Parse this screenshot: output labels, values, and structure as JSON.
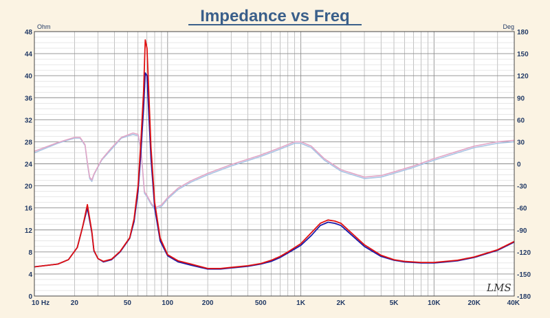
{
  "chart_data": {
    "type": "line",
    "title": "Impedance vs Freq",
    "left_unit": "Ohm",
    "right_unit": "Deg",
    "signature": "LMS",
    "x_scale": "log",
    "xlim": [
      10,
      40000
    ],
    "ylim_left": [
      0,
      48
    ],
    "ylim_right": [
      -180,
      180
    ],
    "grid": true,
    "x_ticks": [
      {
        "value": 10,
        "label": "10  Hz"
      },
      {
        "value": 20,
        "label": "20"
      },
      {
        "value": 50,
        "label": "50"
      },
      {
        "value": 100,
        "label": "100"
      },
      {
        "value": 200,
        "label": "200"
      },
      {
        "value": 500,
        "label": "500"
      },
      {
        "value": 1000,
        "label": "1K"
      },
      {
        "value": 2000,
        "label": "2K"
      },
      {
        "value": 5000,
        "label": "5K"
      },
      {
        "value": 10000,
        "label": "10K"
      },
      {
        "value": 20000,
        "label": "20K"
      },
      {
        "value": 40000,
        "label": "40K"
      }
    ],
    "y_left_ticks": [
      "0",
      "4",
      "8",
      "12",
      "16",
      "20",
      "24",
      "28",
      "32",
      "36",
      "40",
      "44",
      "48"
    ],
    "y_right_ticks": [
      "-180",
      "-150",
      "-120",
      "-90",
      "-60",
      "-30",
      "0",
      "30",
      "60",
      "90",
      "120",
      "150",
      "180"
    ],
    "colors": {
      "impedance_1": "#1a1aa8",
      "impedance_2": "#e01010",
      "phase_1": "#a9c4e4",
      "phase_2": "#e2a6c6",
      "grid": "#9a9a9a",
      "plot_bg": "#ffffff",
      "title": "#3a5f8a",
      "axis_text": "#223a66"
    },
    "series": [
      {
        "axis": "left",
        "color_key": "impedance_1",
        "points": [
          [
            10,
            5.3
          ],
          [
            15,
            5.8
          ],
          [
            18,
            6.6
          ],
          [
            21,
            8.8
          ],
          [
            23,
            12.5
          ],
          [
            25,
            16.0
          ],
          [
            27,
            11.5
          ],
          [
            28,
            8.2
          ],
          [
            30,
            6.8
          ],
          [
            33,
            6.2
          ],
          [
            38,
            6.6
          ],
          [
            44,
            8.0
          ],
          [
            52,
            10.5
          ],
          [
            56,
            13.5
          ],
          [
            60,
            19
          ],
          [
            63,
            26
          ],
          [
            66,
            34
          ],
          [
            68,
            40.5
          ],
          [
            70,
            40
          ],
          [
            72,
            34
          ],
          [
            75,
            25
          ],
          [
            80,
            16
          ],
          [
            88,
            10
          ],
          [
            100,
            7.3
          ],
          [
            120,
            6.2
          ],
          [
            150,
            5.6
          ],
          [
            200,
            4.9
          ],
          [
            250,
            4.9
          ],
          [
            300,
            5.1
          ],
          [
            400,
            5.4
          ],
          [
            500,
            5.8
          ],
          [
            600,
            6.3
          ],
          [
            700,
            7.0
          ],
          [
            800,
            7.8
          ],
          [
            1000,
            9.2
          ],
          [
            1200,
            11.0
          ],
          [
            1400,
            12.8
          ],
          [
            1600,
            13.4
          ],
          [
            1800,
            13.2
          ],
          [
            2000,
            12.8
          ],
          [
            3000,
            9.0
          ],
          [
            4000,
            7.2
          ],
          [
            5000,
            6.5
          ],
          [
            6000,
            6.2
          ],
          [
            8000,
            6.0
          ],
          [
            10000,
            6.0
          ],
          [
            15000,
            6.4
          ],
          [
            20000,
            7.0
          ],
          [
            30000,
            8.3
          ],
          [
            40000,
            9.8
          ]
        ]
      },
      {
        "axis": "left",
        "color_key": "impedance_2",
        "points": [
          [
            10,
            5.3
          ],
          [
            15,
            5.8
          ],
          [
            18,
            6.6
          ],
          [
            21,
            8.8
          ],
          [
            23,
            12.5
          ],
          [
            25,
            16.6
          ],
          [
            27,
            11.7
          ],
          [
            28,
            8.3
          ],
          [
            30,
            6.8
          ],
          [
            33,
            6.3
          ],
          [
            38,
            6.7
          ],
          [
            44,
            8.1
          ],
          [
            52,
            10.6
          ],
          [
            56,
            14
          ],
          [
            60,
            20
          ],
          [
            63,
            28
          ],
          [
            66,
            37
          ],
          [
            68,
            46.5
          ],
          [
            70,
            45
          ],
          [
            72,
            38
          ],
          [
            75,
            27
          ],
          [
            80,
            17
          ],
          [
            88,
            10.5
          ],
          [
            100,
            7.5
          ],
          [
            120,
            6.4
          ],
          [
            150,
            5.8
          ],
          [
            200,
            5.0
          ],
          [
            250,
            5.0
          ],
          [
            300,
            5.2
          ],
          [
            400,
            5.5
          ],
          [
            500,
            5.9
          ],
          [
            600,
            6.5
          ],
          [
            700,
            7.2
          ],
          [
            800,
            8.0
          ],
          [
            1000,
            9.5
          ],
          [
            1200,
            11.5
          ],
          [
            1400,
            13.2
          ],
          [
            1600,
            13.8
          ],
          [
            1800,
            13.6
          ],
          [
            2000,
            13.2
          ],
          [
            3000,
            9.3
          ],
          [
            4000,
            7.4
          ],
          [
            5000,
            6.6
          ],
          [
            6000,
            6.3
          ],
          [
            8000,
            6.1
          ],
          [
            10000,
            6.1
          ],
          [
            15000,
            6.5
          ],
          [
            20000,
            7.1
          ],
          [
            30000,
            8.4
          ],
          [
            40000,
            9.9
          ]
        ]
      },
      {
        "axis": "right",
        "color_key": "phase_1",
        "points": [
          [
            10,
            15
          ],
          [
            15,
            28
          ],
          [
            20,
            35
          ],
          [
            22,
            35
          ],
          [
            24,
            25
          ],
          [
            25,
            0
          ],
          [
            26,
            -20
          ],
          [
            27,
            -24
          ],
          [
            28,
            -15
          ],
          [
            32,
            5
          ],
          [
            38,
            20
          ],
          [
            45,
            35
          ],
          [
            55,
            40
          ],
          [
            60,
            38
          ],
          [
            63,
            20
          ],
          [
            65,
            -10
          ],
          [
            67,
            -40
          ],
          [
            70,
            -45
          ],
          [
            75,
            -55
          ],
          [
            80,
            -62
          ],
          [
            90,
            -58
          ],
          [
            100,
            -48
          ],
          [
            120,
            -35
          ],
          [
            150,
            -25
          ],
          [
            200,
            -15
          ],
          [
            300,
            -3
          ],
          [
            500,
            10
          ],
          [
            700,
            20
          ],
          [
            900,
            28
          ],
          [
            1000,
            28
          ],
          [
            1200,
            22
          ],
          [
            1500,
            5
          ],
          [
            2000,
            -10
          ],
          [
            3000,
            -20
          ],
          [
            4000,
            -18
          ],
          [
            5000,
            -13
          ],
          [
            7000,
            -5
          ],
          [
            10000,
            5
          ],
          [
            15000,
            15
          ],
          [
            20000,
            22
          ],
          [
            30000,
            28
          ],
          [
            40000,
            30
          ]
        ]
      },
      {
        "axis": "right",
        "color_key": "phase_2",
        "points": [
          [
            10,
            17
          ],
          [
            15,
            29
          ],
          [
            20,
            36
          ],
          [
            22,
            36
          ],
          [
            24,
            26
          ],
          [
            25,
            2
          ],
          [
            26,
            -18
          ],
          [
            27,
            -22
          ],
          [
            28,
            -14
          ],
          [
            32,
            6
          ],
          [
            38,
            22
          ],
          [
            45,
            36
          ],
          [
            55,
            42
          ],
          [
            60,
            40
          ],
          [
            63,
            22
          ],
          [
            65,
            -8
          ],
          [
            67,
            -38
          ],
          [
            70,
            -43
          ],
          [
            75,
            -53
          ],
          [
            80,
            -60
          ],
          [
            90,
            -56
          ],
          [
            100,
            -46
          ],
          [
            120,
            -33
          ],
          [
            150,
            -23
          ],
          [
            200,
            -13
          ],
          [
            300,
            -1
          ],
          [
            500,
            12
          ],
          [
            700,
            22
          ],
          [
            900,
            30
          ],
          [
            1000,
            30
          ],
          [
            1200,
            24
          ],
          [
            1500,
            7
          ],
          [
            2000,
            -8
          ],
          [
            3000,
            -18
          ],
          [
            4000,
            -16
          ],
          [
            5000,
            -11
          ],
          [
            7000,
            -3
          ],
          [
            10000,
            7
          ],
          [
            15000,
            17
          ],
          [
            20000,
            24
          ],
          [
            30000,
            30
          ],
          [
            40000,
            32
          ]
        ]
      }
    ]
  }
}
